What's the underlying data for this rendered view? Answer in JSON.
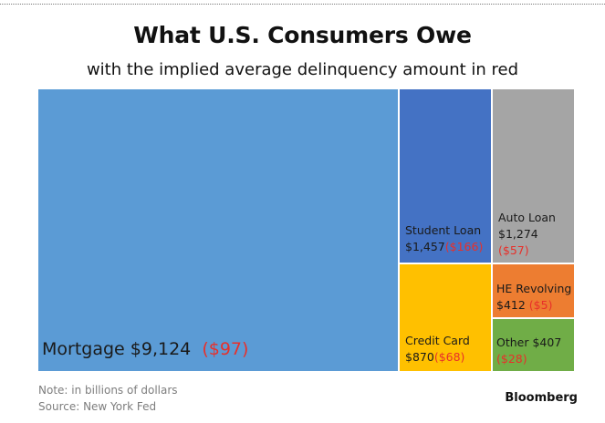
{
  "title": "What U.S. Consumers Owe",
  "subtitle": "with the implied average delinquency amount in red",
  "note": "Note: in billions of dollars",
  "source": "Source: New York Fed",
  "brand": "Bloomberg",
  "chart_data": {
    "type": "treemap",
    "title": "What U.S. Consumers Owe",
    "subtitle": "with the implied average delinquency amount in red",
    "unit": "billions of dollars",
    "items": [
      {
        "name": "Mortgage",
        "value": 9124,
        "value_label": "$9,124",
        "delinquency": 97,
        "delinquency_label": "($97)",
        "color": "#5b9bd5"
      },
      {
        "name": "Student Loan",
        "value": 1457,
        "value_label": "$1,457",
        "delinquency": 166,
        "delinquency_label": "($166)",
        "color": "#4472c4"
      },
      {
        "name": "Auto Loan",
        "value": 1274,
        "value_label": "$1,274",
        "delinquency": 57,
        "delinquency_label": "($57)",
        "color": "#a5a5a5"
      },
      {
        "name": "Credit Card",
        "value": 870,
        "value_label": "$870",
        "delinquency": 68,
        "delinquency_label": "($68)",
        "color": "#ffc000"
      },
      {
        "name": "HE Revolving",
        "value": 412,
        "value_label": "$412",
        "delinquency": 5,
        "delinquency_label": "($5)",
        "color": "#ed7d31"
      },
      {
        "name": "Other",
        "value": 407,
        "value_label": "$407",
        "delinquency": 28,
        "delinquency_label": "($28)",
        "color": "#70ad47"
      }
    ]
  }
}
